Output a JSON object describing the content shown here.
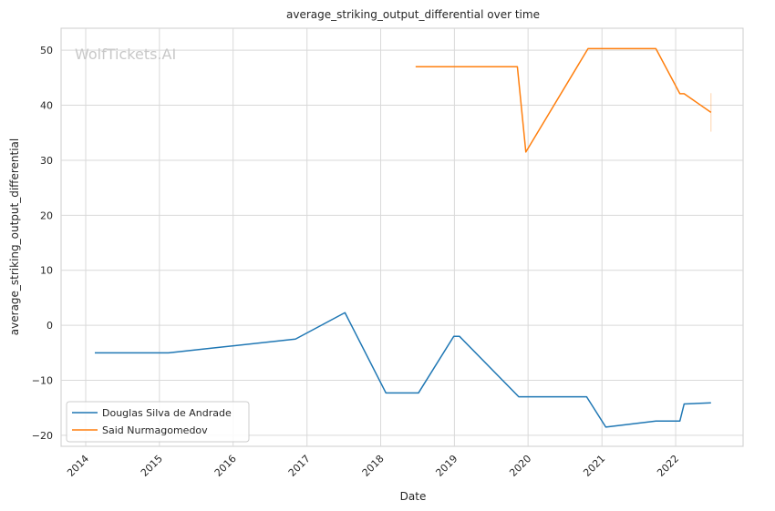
{
  "chart_data": {
    "type": "line",
    "title": "average_striking_output_differential over time",
    "xlabel": "Date",
    "ylabel": "average_striking_output_differential",
    "watermark": "WolfTickets.AI",
    "xlim": [
      "2013-09-01",
      "2022-12-01"
    ],
    "ylim": [
      -22,
      54
    ],
    "x_ticks": [
      "2014",
      "2015",
      "2016",
      "2017",
      "2018",
      "2019",
      "2020",
      "2021",
      "2022"
    ],
    "y_ticks": [
      -20,
      -10,
      0,
      10,
      20,
      30,
      40,
      50
    ],
    "grid": true,
    "legend_position": "bottom-left",
    "series": [
      {
        "name": "Douglas Silva de Andrade",
        "color": "#1f77b4",
        "points": [
          [
            "2014-02-15",
            -5.0
          ],
          [
            "2015-02-15",
            -5.0
          ],
          [
            "2016-11-05",
            -2.5
          ],
          [
            "2017-07-08",
            2.3
          ],
          [
            "2018-01-27",
            -12.3
          ],
          [
            "2018-07-07",
            -12.3
          ],
          [
            "2018-12-29",
            -2.0
          ],
          [
            "2019-01-26",
            -2.0
          ],
          [
            "2019-11-16",
            -13.0
          ],
          [
            "2020-10-17",
            -13.0
          ],
          [
            "2021-01-20",
            -18.5
          ],
          [
            "2021-09-25",
            -17.4
          ],
          [
            "2022-01-22",
            -17.4
          ],
          [
            "2022-02-12",
            -14.3
          ],
          [
            "2022-06-25",
            -14.1
          ]
        ]
      },
      {
        "name": "Said Nurmagomedov",
        "color": "#ff7f0e",
        "points": [
          [
            "2018-06-23",
            47.0
          ],
          [
            "2019-11-09",
            47.0
          ],
          [
            "2019-12-21",
            31.5
          ],
          [
            "2020-10-24",
            50.3
          ],
          [
            "2021-09-25",
            50.3
          ],
          [
            "2022-01-22",
            42.1
          ],
          [
            "2022-02-12",
            42.1
          ],
          [
            "2022-06-25",
            38.7
          ]
        ],
        "error_bar": {
          "x": "2022-06-25",
          "low": 35.2,
          "high": 42.2
        }
      }
    ]
  }
}
